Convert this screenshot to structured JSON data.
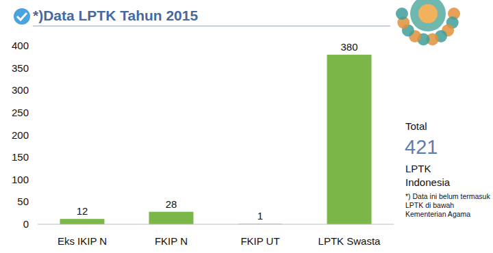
{
  "chart_data": {
    "type": "bar",
    "title": "*)Data LPTK Tahun 2015",
    "categories": [
      "Eks IKIP N",
      "FKIP N",
      "FKIP UT",
      "LPTK Swasta"
    ],
    "values": [
      12,
      28,
      1,
      380
    ],
    "color": "#7ab648",
    "ylim": [
      0,
      400
    ],
    "yticks": [
      0,
      50,
      100,
      150,
      200,
      250,
      300,
      350,
      400
    ],
    "grid": false,
    "data_labels": true,
    "annotations": [
      "Total",
      "421",
      "LPTK",
      "Indonesia",
      "*) Data ini belum termasuk LPTK di bawah Kementerian Agama"
    ]
  }
}
